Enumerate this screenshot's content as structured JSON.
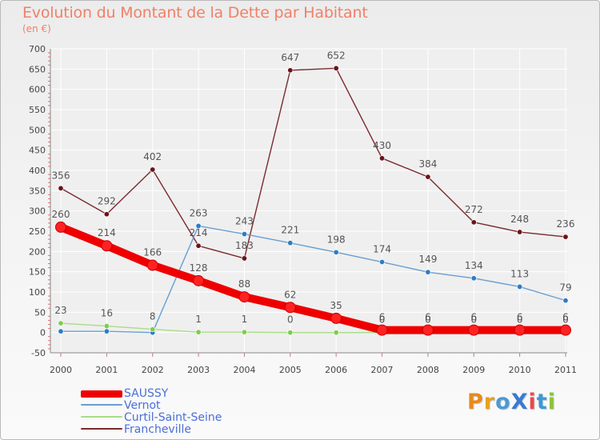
{
  "header": {
    "title": "Evolution du Montant de la Dette par Habitant",
    "subtitle": "(en €)"
  },
  "colors": {
    "background": "#efefef",
    "title": "#f08068",
    "grid": "#ffffff",
    "axis_text": "#444444",
    "value_text": "#555555",
    "legend_text": "#4a6fd8"
  },
  "chart_data": {
    "type": "line",
    "x": [
      "2000",
      "2001",
      "2002",
      "2003",
      "2004",
      "2005",
      "2006",
      "2007",
      "2008",
      "2009",
      "2010",
      "2011"
    ],
    "ylim": [
      -50,
      700
    ],
    "yticks": [
      "-50",
      "0",
      "50",
      "100",
      "150",
      "200",
      "250",
      "300",
      "350",
      "400",
      "450",
      "500",
      "550",
      "600",
      "650",
      "700"
    ],
    "grid": true,
    "legend_position": "bottom-left",
    "series": [
      {
        "name": "Francheville",
        "color": "#7a2a2c",
        "marker": "#6a1418",
        "values": [
          356,
          292,
          402,
          214,
          183,
          647,
          652,
          430,
          384,
          272,
          248,
          236
        ],
        "labels": [
          "356",
          "292",
          "402",
          "214",
          "183",
          "647",
          "652",
          "430",
          "384",
          "272",
          "248",
          "236"
        ]
      },
      {
        "name": "Vernot",
        "color": "#6a9ed0",
        "marker": "#2d7cc6",
        "values": [
          3,
          3,
          0,
          263,
          243,
          221,
          198,
          174,
          149,
          134,
          113,
          79
        ],
        "labels": [
          "",
          "",
          "",
          "263",
          "243",
          "221",
          "198",
          "174",
          "149",
          "134",
          "113",
          "79"
        ]
      },
      {
        "name": "Curtil-Saint-Seine",
        "color": "#a8dc88",
        "marker": "#7ccd4c",
        "values": [
          23,
          16,
          8,
          1,
          1,
          0,
          0,
          0,
          0,
          0,
          0,
          0
        ],
        "labels": [
          "23",
          "16",
          "8",
          "1",
          "1",
          "0",
          "0",
          "0",
          "0",
          "0",
          "0",
          "0"
        ]
      },
      {
        "name": "SAUSSY",
        "color": "#ee0000",
        "marker": "#ff2222",
        "values": [
          260,
          214,
          166,
          128,
          88,
          62,
          35,
          6,
          6,
          6,
          6,
          6
        ],
        "labels": [
          "260",
          "214",
          "166",
          "128",
          "88",
          "62",
          "35",
          "6",
          "6",
          "6",
          "6",
          "6"
        ]
      }
    ]
  },
  "legend": [
    {
      "name": "SAUSSY",
      "color": "#ee0000"
    },
    {
      "name": "Vernot",
      "color": "#6a9ed0"
    },
    {
      "name": "Curtil-Saint-Seine",
      "color": "#a8dc88"
    },
    {
      "name": "Francheville",
      "color": "#7a2a2c"
    }
  ],
  "logo": {
    "text": "ProXiti",
    "letter_colors": [
      "#e8891c",
      "#e8a11c",
      "#4a9ad8",
      "#3a7ad0",
      "#e84a4a",
      "#3a9ad8",
      "#8ac43a"
    ]
  }
}
